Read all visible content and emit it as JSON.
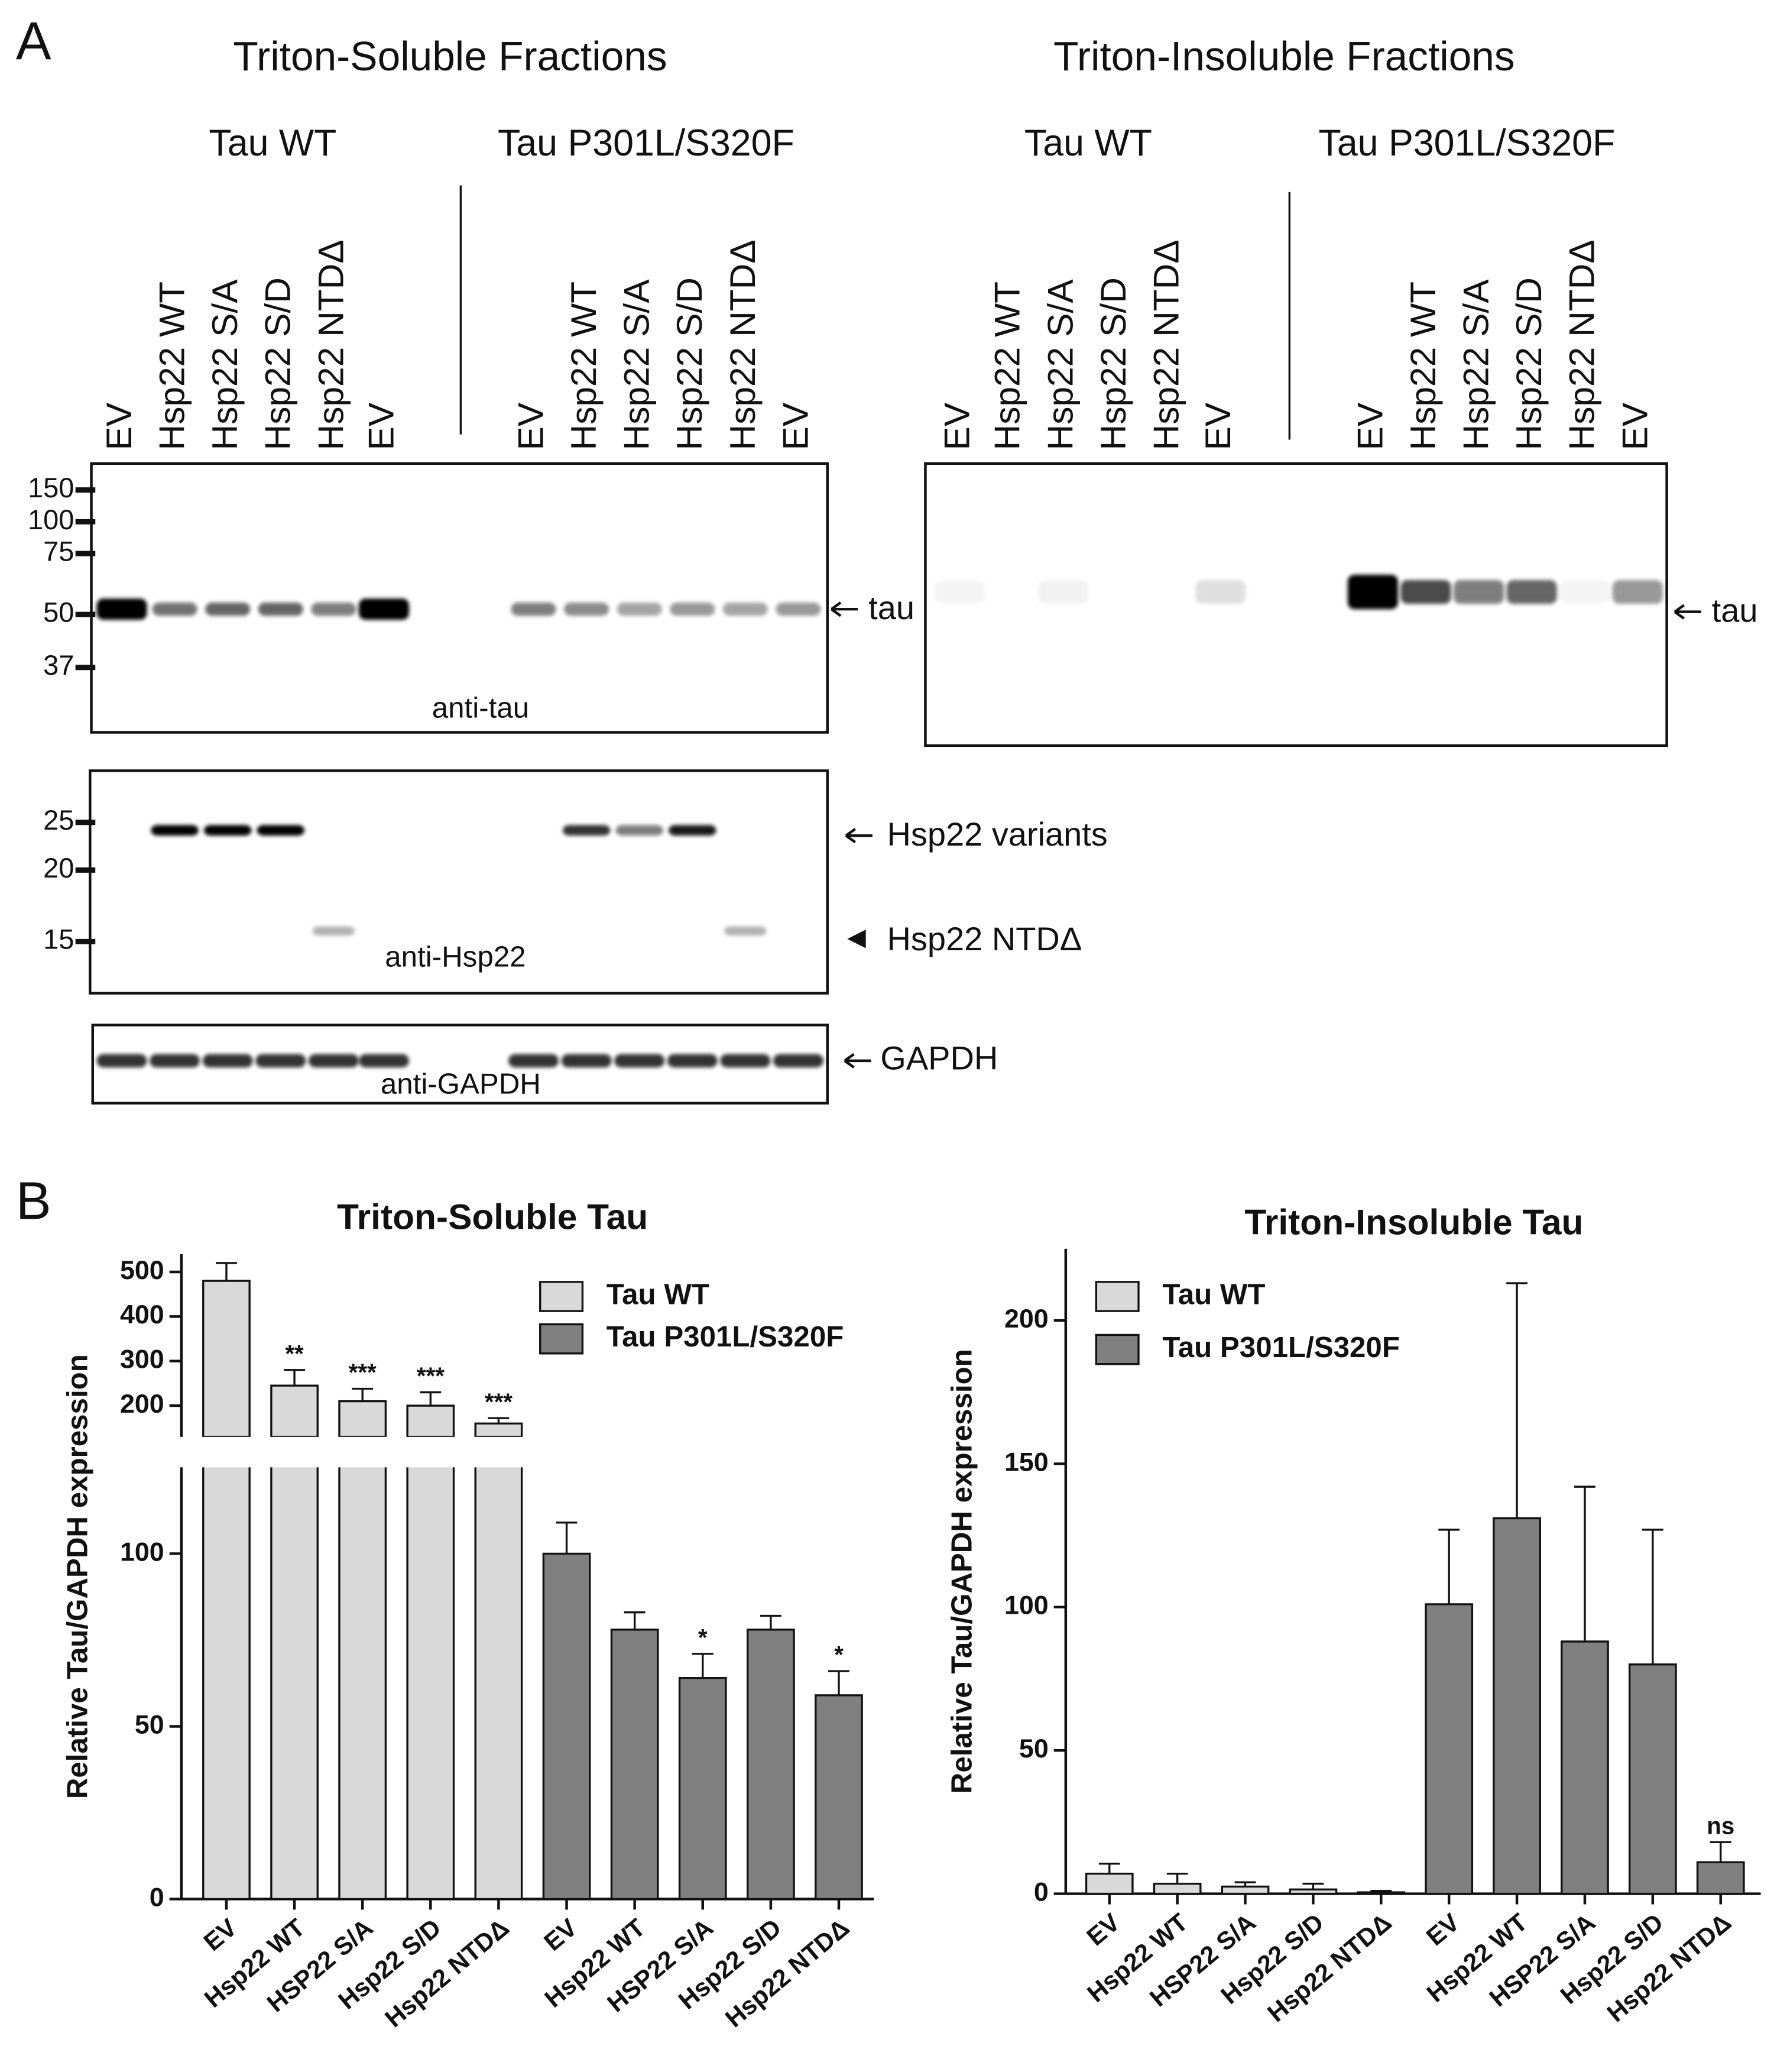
{
  "panel_a": {
    "label": "A",
    "soluble": {
      "title": "Triton-Soluble Fractions",
      "groups": [
        "Tau WT",
        "Tau P301L/S320F"
      ],
      "lanes": [
        "EV",
        "Hsp22 WT",
        "Hsp22 S/A",
        "Hsp22 S/D",
        "Hsp22 NTDΔ",
        "EV",
        "EV",
        "Hsp22 WT",
        "Hsp22 S/A",
        "Hsp22 S/D",
        "Hsp22 NTDΔ",
        "EV"
      ]
    },
    "insoluble": {
      "title": "Triton-Insoluble Fractions",
      "groups": [
        "Tau WT",
        "Tau P301L/S320F"
      ],
      "lanes": [
        "EV",
        "Hsp22 WT",
        "Hsp22 S/A",
        "Hsp22 S/D",
        "Hsp22 NTDΔ",
        "EV",
        "EV",
        "Hsp22 WT",
        "Hsp22 S/A",
        "Hsp22 S/D",
        "Hsp22 NTDΔ",
        "EV"
      ]
    },
    "markers_tau": [
      150,
      100,
      75,
      50,
      37
    ],
    "markers_hsp22": [
      25,
      20,
      15
    ],
    "blot_labels": {
      "anti_tau": "anti-tau",
      "anti_hsp22": "anti-Hsp22",
      "anti_gapdh": "anti-GAPDH"
    },
    "band_labels": {
      "tau": "tau",
      "tau_insoluble": "tau",
      "hsp22_variants": "Hsp22 variants",
      "hsp22_ntd": "Hsp22 NTDΔ",
      "gapdh": "GAPDH"
    }
  },
  "panel_b_label": "B",
  "chart_data": [
    {
      "type": "bar",
      "title": "Triton-Soluble Tau",
      "ylabel": "Relative Tau/GAPDH expression",
      "categories": [
        "EV",
        "Hsp22 WT",
        "HSP22 S/A",
        "Hsp22 S/D",
        "Hsp22 NTDΔ",
        "EV",
        "Hsp22 WT",
        "HSP22 S/A",
        "Hsp22 S/D",
        "Hsp22 NTDΔ"
      ],
      "series": [
        {
          "name": "Tau WT",
          "color": "#d9d9d9",
          "values": [
            480,
            245,
            210,
            200,
            160,
            null,
            null,
            null,
            null,
            null
          ],
          "errors": [
            40,
            35,
            28,
            30,
            12,
            null,
            null,
            null,
            null,
            null
          ],
          "annotations": [
            null,
            "**",
            "***",
            "***",
            "***",
            null,
            null,
            null,
            null,
            null
          ]
        },
        {
          "name": "Tau P301L/S320F",
          "color": "#808080",
          "values": [
            null,
            null,
            null,
            null,
            null,
            100,
            78,
            64,
            78,
            59
          ],
          "errors": [
            null,
            null,
            null,
            null,
            null,
            9,
            5,
            7,
            4,
            7
          ],
          "annotations": [
            null,
            null,
            null,
            null,
            null,
            null,
            null,
            "*",
            null,
            "*"
          ]
        }
      ],
      "ylim": [
        0,
        125
      ],
      "yticks": [
        0,
        50,
        100
      ],
      "ylim_upper": [
        130,
        540
      ],
      "yticks_upper": [
        200,
        300,
        400,
        500
      ],
      "legend": "upper right"
    },
    {
      "type": "bar",
      "title": "Triton-Insoluble Tau",
      "ylabel": "Relative Tau/GAPDH expression",
      "categories": [
        "EV",
        "Hsp22 WT",
        "HSP22 S/A",
        "Hsp22 S/D",
        "Hsp22 NTDΔ",
        "EV",
        "Hsp22 WT",
        "HSP22 S/A",
        "Hsp22 S/D",
        "Hsp22 NTDΔ"
      ],
      "series": [
        {
          "name": "Tau WT",
          "color": "#d9d9d9",
          "values": [
            7,
            3.5,
            2.5,
            1.5,
            0.5,
            null,
            null,
            null,
            null,
            null
          ],
          "errors": [
            3.5,
            3.5,
            1.5,
            2,
            0.5,
            null,
            null,
            null,
            null,
            null
          ],
          "annotations": [
            null,
            null,
            null,
            null,
            null,
            null,
            null,
            null,
            null,
            null
          ]
        },
        {
          "name": "Tau P301L/S320F",
          "color": "#808080",
          "values": [
            null,
            null,
            null,
            null,
            null,
            101,
            131,
            88,
            80,
            11
          ],
          "errors": [
            null,
            null,
            null,
            null,
            null,
            26,
            82,
            54,
            47,
            7
          ],
          "annotations": [
            null,
            null,
            null,
            null,
            null,
            null,
            null,
            null,
            null,
            "ns"
          ]
        }
      ],
      "ylim": [
        0,
        225
      ],
      "yticks": [
        0,
        50,
        100,
        150,
        200
      ],
      "legend": "upper left"
    }
  ]
}
